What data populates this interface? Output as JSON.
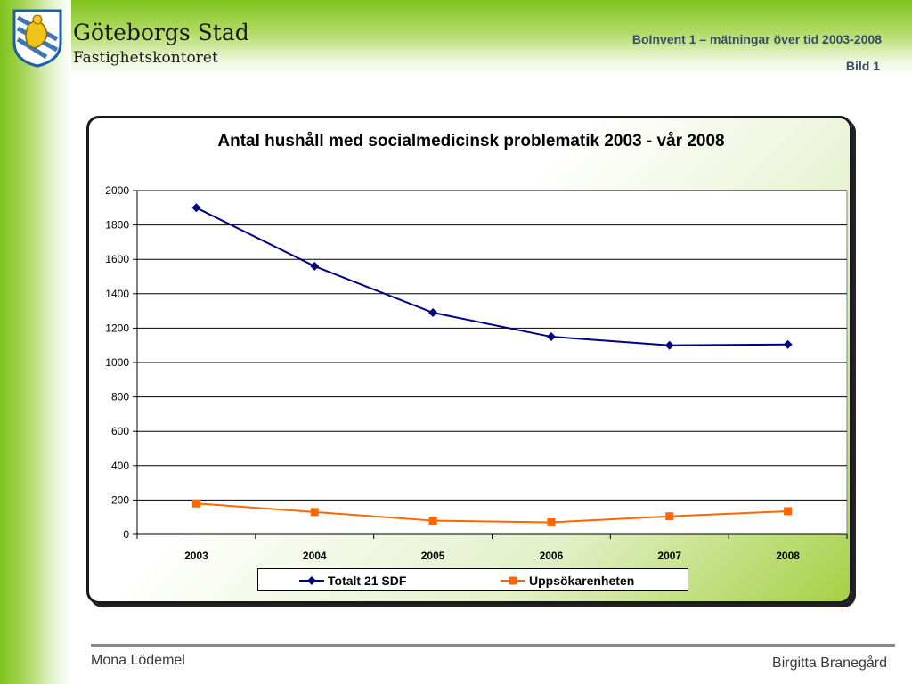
{
  "header": {
    "org_name": "Göteborgs Stad",
    "org_department": "Fastighetskontoret",
    "presentation_title": "BoInvent 1 – mätningar över tid 2003-2008",
    "slide_label": "Bild 1",
    "logo_icon": "goteborg-coat-of-arms-icon"
  },
  "footer": {
    "left_name": "Mona Lödemel",
    "right_name": "Birgitta Branegård"
  },
  "colors": {
    "series_1": "#000080",
    "series_2": "#ff6600",
    "accent_green": "#7fc31c"
  },
  "chart_data": {
    "type": "line",
    "title": "Antal hushåll med socialmedicinsk problematik 2003 - vår 2008",
    "xlabel": "",
    "ylabel": "",
    "categories": [
      "2003",
      "2004",
      "2005",
      "2006",
      "2007",
      "2008"
    ],
    "ylim": [
      0,
      2000
    ],
    "yticks": [
      "0",
      "200",
      "400",
      "600",
      "800",
      "1000",
      "1200",
      "1400",
      "1600",
      "1800",
      "2000"
    ],
    "grid": true,
    "legend_position": "bottom",
    "series": [
      {
        "name": "Totalt 21 SDF",
        "marker": "diamond",
        "values": [
          1900,
          1560,
          1290,
          1150,
          1100,
          1105
        ]
      },
      {
        "name": "Uppsökarenheten",
        "marker": "square",
        "values": [
          180,
          130,
          80,
          70,
          105,
          135
        ]
      }
    ]
  }
}
